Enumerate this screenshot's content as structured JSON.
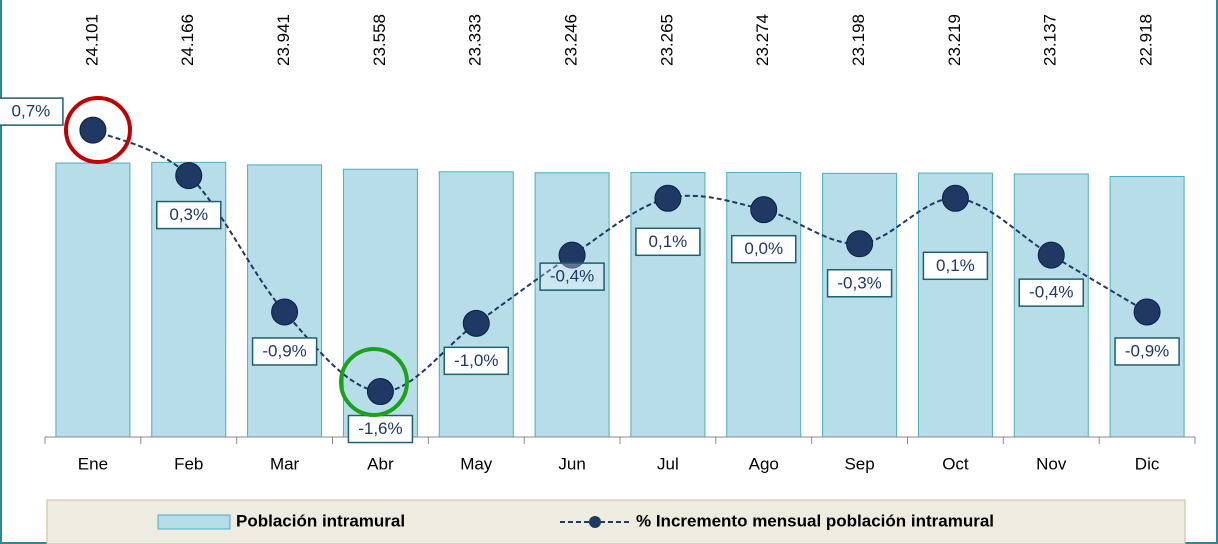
{
  "chart_data": {
    "type": "bar-line",
    "categories": [
      "Ene",
      "Feb",
      "Mar",
      "Abr",
      "May",
      "Jun",
      "Jul",
      "Ago",
      "Sep",
      "Oct",
      "Nov",
      "Dic"
    ],
    "series": [
      {
        "name": "Población intramural",
        "color": "#b7dde8",
        "type": "bar",
        "values": [
          24101,
          24166,
          23941,
          23558,
          23333,
          23246,
          23265,
          23274,
          23198,
          23219,
          23137,
          22918
        ],
        "value_labels": [
          "24.101",
          "24.166",
          "23.941",
          "23.558",
          "23.333",
          "23.246",
          "23.265",
          "23.274",
          "23.198",
          "23.219",
          "23.137",
          "22.918"
        ]
      },
      {
        "name": "% Incremento mensual población intramural",
        "color": "#1f3864",
        "type": "line",
        "axis": "y2",
        "values": [
          0.7,
          0.3,
          -0.9,
          -1.6,
          -1.0,
          -0.4,
          0.1,
          0.0,
          -0.3,
          0.1,
          -0.4,
          -0.9
        ],
        "value_labels": [
          "0,7%",
          "0,3%",
          "-0,9%",
          "-1,6%",
          "-1,0%",
          "-0,4%",
          "0,1%",
          "0,0%",
          "-0,3%",
          "0,1%",
          "-0,4%",
          "-0,9%"
        ]
      }
    ],
    "ylim": [
      0,
      30000
    ],
    "y2lim": [
      -2,
      1
    ]
  }
}
